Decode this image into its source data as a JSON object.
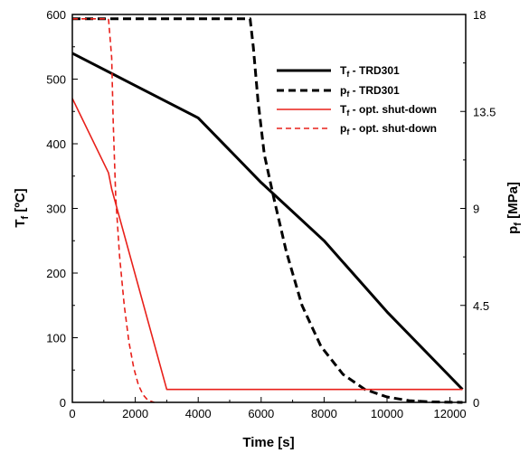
{
  "chart_data": {
    "type": "line",
    "x_axis": {
      "label": "Time [s]",
      "min": 0,
      "max": 12500,
      "ticks": [
        0,
        2000,
        4000,
        6000,
        8000,
        10000,
        12000
      ],
      "tick_labels": [
        "0",
        "2000",
        "4000",
        "6000",
        "8000",
        "10000",
        "12000"
      ]
    },
    "y_left": {
      "label_main": "T",
      "label_sub": "f",
      "label_rest": " [ºC]",
      "min": 0,
      "max": 600,
      "ticks": [
        0,
        100,
        200,
        300,
        400,
        500,
        600
      ],
      "tick_labels": [
        "0",
        "100",
        "200",
        "300",
        "400",
        "500",
        "600"
      ]
    },
    "y_right": {
      "label_main": "p",
      "label_sub": "f",
      "label_rest": " [MPa]",
      "min": 0,
      "max": 18,
      "ticks": [
        0,
        4.5,
        9,
        13.5,
        18
      ],
      "tick_labels": [
        "0",
        "4.5",
        "9",
        "13.5",
        "18"
      ]
    },
    "legend_position": "top-right",
    "series": [
      {
        "name_main": "T",
        "name_sub": "f",
        "name_rest": " - TRD301",
        "axis": "left",
        "color": "#000000",
        "dash": "solid",
        "width": 3,
        "points": [
          [
            0,
            540
          ],
          [
            2000,
            490
          ],
          [
            4000,
            440
          ],
          [
            6000,
            340
          ],
          [
            8000,
            250
          ],
          [
            10000,
            140
          ],
          [
            12400,
            20
          ]
        ]
      },
      {
        "name_main": "p",
        "name_sub": "f",
        "name_rest": " - TRD301",
        "axis": "right",
        "color": "#000000",
        "dash": "dashed",
        "width": 3,
        "points": [
          [
            0,
            17.8
          ],
          [
            5650,
            17.8
          ],
          [
            5750,
            16.5
          ],
          [
            5900,
            14.0
          ],
          [
            6100,
            11.5
          ],
          [
            6400,
            9.5
          ],
          [
            6800,
            7.0
          ],
          [
            7300,
            4.5
          ],
          [
            7900,
            2.6
          ],
          [
            8600,
            1.3
          ],
          [
            9300,
            0.6
          ],
          [
            10000,
            0.25
          ],
          [
            10700,
            0.08
          ],
          [
            11400,
            0.02
          ],
          [
            12400,
            0
          ]
        ]
      },
      {
        "name_main": "T",
        "name_sub": "f",
        "name_rest": " - opt. shut-down",
        "axis": "left",
        "color": "#e8201a",
        "dash": "solid",
        "width": 1.6,
        "points": [
          [
            0,
            470
          ],
          [
            1150,
            355
          ],
          [
            1250,
            330
          ],
          [
            3000,
            20
          ],
          [
            12400,
            20
          ]
        ]
      },
      {
        "name_main": "p",
        "name_sub": "f",
        "name_rest": " - opt. shut-down",
        "axis": "right",
        "color": "#e8201a",
        "dash": "dashed",
        "width": 1.6,
        "points": [
          [
            0,
            17.8
          ],
          [
            1150,
            17.8
          ],
          [
            1250,
            16.0
          ],
          [
            1300,
            13.0
          ],
          [
            1380,
            9.5
          ],
          [
            1500,
            6.8
          ],
          [
            1650,
            4.5
          ],
          [
            1800,
            2.8
          ],
          [
            1950,
            1.6
          ],
          [
            2100,
            0.8
          ],
          [
            2250,
            0.35
          ],
          [
            2400,
            0.1
          ],
          [
            2600,
            0
          ]
        ]
      }
    ]
  }
}
